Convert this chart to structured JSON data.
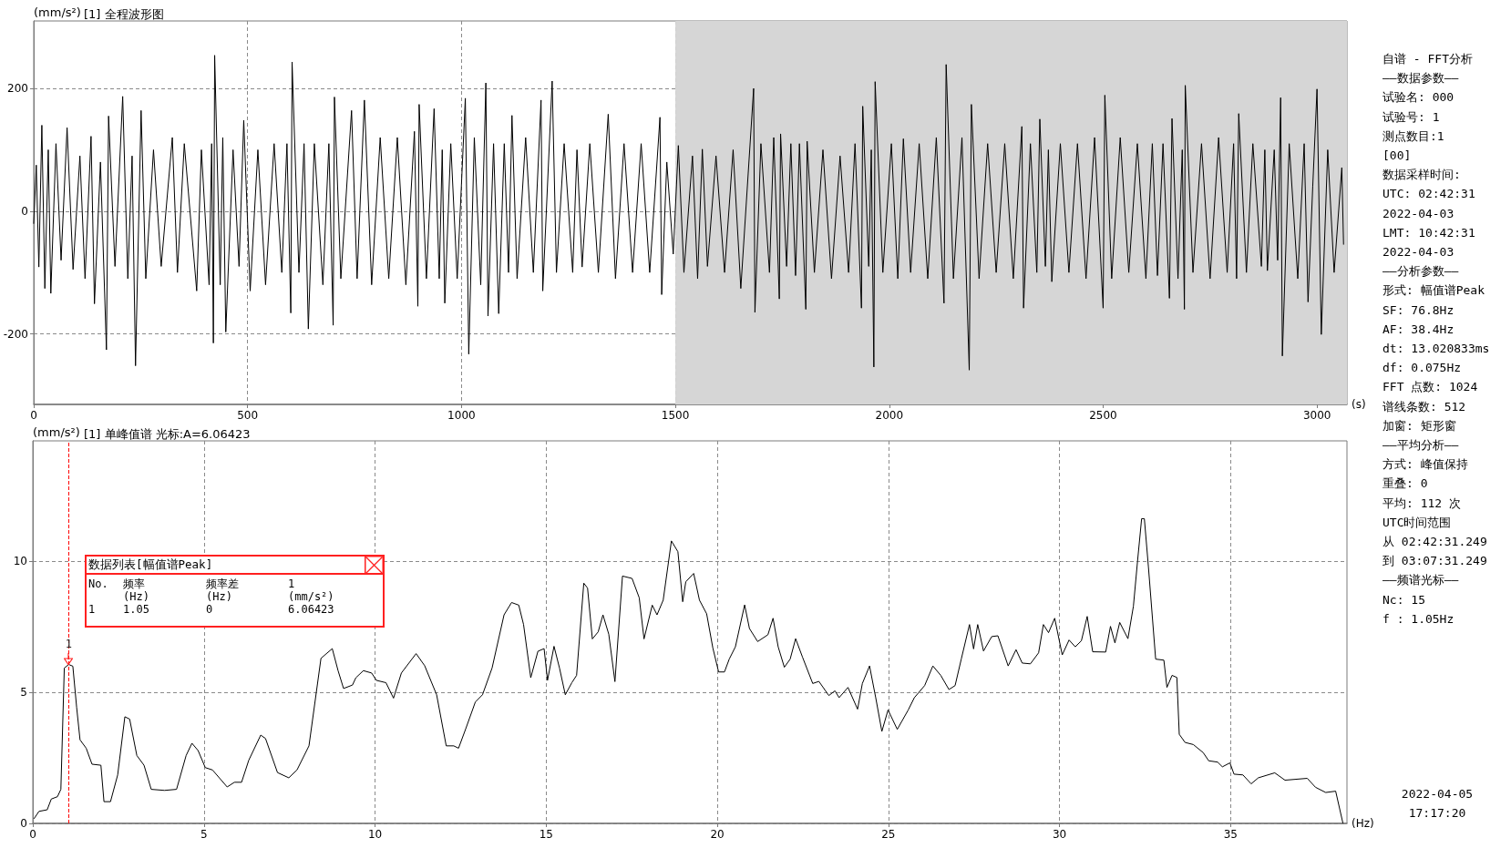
{
  "chart_data": [
    {
      "type": "line",
      "title": "[1] 全程波形图",
      "ylabel": "(mm/s²)",
      "xlabel": "(s)",
      "xlim": [
        0,
        3070
      ],
      "xticks": [
        0,
        500,
        1000,
        1500,
        2000,
        2500,
        3000
      ],
      "ylim": [
        -315,
        310
      ],
      "yticks": [
        -200,
        0,
        200
      ],
      "grid": true,
      "bands": [
        {
          "axis": "x",
          "from": 1500,
          "to": 3070,
          "color": "#d6d6d6"
        }
      ],
      "x": [
        0,
        6,
        12,
        19,
        26,
        34,
        40,
        52,
        64,
        78,
        92,
        108,
        120,
        134,
        142,
        156,
        170,
        175,
        190,
        208,
        220,
        230,
        238,
        251,
        262,
        280,
        298,
        324,
        336,
        352,
        381,
        392,
        410,
        416,
        420,
        423,
        436,
        442,
        449,
        466,
        480,
        491,
        506,
        524,
        542,
        562,
        580,
        592,
        601,
        604,
        620,
        632,
        642,
        656,
        676,
        690,
        700,
        703,
        718,
        743,
        756,
        773,
        790,
        810,
        830,
        850,
        870,
        890,
        898,
        901,
        918,
        936,
        948,
        955,
        961,
        975,
        990,
        1009,
        1017,
        1030,
        1045,
        1057,
        1062,
        1075,
        1087,
        1100,
        1110,
        1118,
        1130,
        1150,
        1168,
        1186,
        1190,
        1212,
        1222,
        1240,
        1260,
        1270,
        1282,
        1300,
        1320,
        1343,
        1360,
        1380,
        1400,
        1420,
        1440,
        1464,
        1468,
        1480,
        1495,
        1507,
        1520,
        1540,
        1552,
        1563,
        1575,
        1595,
        1615,
        1635,
        1653,
        1683,
        1686,
        1700,
        1720,
        1730,
        1743,
        1746,
        1760,
        1770,
        1781,
        1790,
        1805,
        1808,
        1825,
        1845,
        1865,
        1885,
        1905,
        1920,
        1935,
        1938,
        1952,
        1958,
        1964,
        1967,
        1985,
        2005,
        2020,
        2033,
        2050,
        2070,
        2090,
        2110,
        2128,
        2133,
        2150,
        2170,
        2187,
        2192,
        2210,
        2230,
        2250,
        2270,
        2290,
        2310,
        2314,
        2330,
        2345,
        2352,
        2365,
        2372,
        2380,
        2400,
        2420,
        2440,
        2460,
        2480,
        2500,
        2504,
        2520,
        2540,
        2560,
        2580,
        2600,
        2615,
        2627,
        2640,
        2655,
        2661,
        2675,
        2685,
        2690,
        2692,
        2710,
        2730,
        2750,
        2770,
        2790,
        2805,
        2812,
        2817,
        2835,
        2850,
        2870,
        2878,
        2884,
        2900,
        2908,
        2915,
        2919,
        2935,
        2955,
        2970,
        2979,
        2990,
        3000,
        3010,
        3025,
        3040,
        3058,
        3062
      ],
      "series": [
        {
          "color": "#000000",
          "values": [
            -20,
            75,
            -91,
            140,
            -126,
            100,
            -134,
            110,
            -80,
            136,
            -95,
            90,
            -110,
            122,
            -151,
            80,
            -226,
            155,
            -90,
            187,
            -110,
            90,
            -252,
            164,
            -110,
            100,
            -90,
            120,
            -100,
            110,
            -130,
            100,
            -120,
            110,
            -215,
            254,
            -120,
            120,
            -197,
            100,
            -90,
            148,
            -130,
            100,
            -120,
            110,
            -100,
            110,
            -166,
            243,
            -100,
            110,
            -192,
            110,
            -120,
            110,
            -186,
            186,
            -110,
            164,
            -110,
            181,
            -120,
            120,
            -110,
            120,
            -120,
            130,
            -155,
            174,
            -110,
            167,
            -110,
            100,
            -150,
            110,
            -110,
            184,
            -233,
            120,
            -120,
            209,
            -171,
            110,
            -167,
            110,
            -100,
            156,
            -110,
            120,
            -100,
            181,
            -130,
            212,
            -100,
            110,
            -100,
            100,
            -91,
            110,
            -100,
            158,
            -110,
            110,
            -100,
            110,
            -100,
            153,
            -136,
            80,
            -70,
            107,
            -100,
            90,
            -110,
            101,
            -90,
            90,
            -100,
            100,
            -126,
            200,
            -165,
            110,
            -100,
            120,
            -143,
            126,
            -90,
            110,
            -105,
            110,
            -160,
            114,
            -100,
            100,
            -110,
            90,
            -100,
            110,
            -158,
            171,
            -90,
            100,
            -254,
            211,
            -100,
            110,
            -110,
            118,
            -100,
            110,
            -110,
            120,
            -150,
            239,
            -110,
            120,
            -259,
            174,
            -110,
            110,
            -100,
            110,
            -110,
            138,
            -158,
            110,
            -100,
            150,
            -90,
            100,
            -115,
            110,
            -100,
            110,
            -110,
            120,
            -158,
            189,
            -110,
            120,
            -100,
            110,
            -110,
            110,
            -105,
            110,
            -142,
            151,
            -110,
            100,
            -160,
            205,
            -100,
            110,
            -110,
            120,
            -100,
            110,
            -110,
            159,
            -100,
            110,
            -90,
            100,
            -97,
            100,
            -80,
            185,
            -236,
            110,
            -110,
            110,
            -148,
            40,
            199,
            -201,
            100,
            -100,
            71,
            -54
          ]
        }
      ]
    },
    {
      "type": "line",
      "title": "[1] 单峰值谱 光标:A=6.06423",
      "ylabel": "(mm/s²)",
      "xlabel": "(Hz)",
      "xlim": [
        0,
        38.4
      ],
      "xticks": [
        0,
        5,
        10,
        15,
        20,
        25,
        30,
        35
      ],
      "ylim": [
        0,
        14.6
      ],
      "yticks": [
        0,
        5,
        10
      ],
      "grid": true,
      "ref_lines": [
        {
          "axis": "x",
          "value": 1.05,
          "color": "#ff0000",
          "line_style": "dashed"
        }
      ],
      "annotations": [
        {
          "text": "1",
          "x": 1.05,
          "y": 6.06423
        },
        "数据列表[幅值谱Peak]",
        "No.",
        "频率\n(Hz)",
        "频率差\n(Hz)",
        "1\n(mm/s²)",
        "1",
        "1.05",
        "0",
        "6.06423"
      ],
      "x": [
        0.04,
        0.18,
        0.42,
        0.54,
        0.72,
        0.82,
        0.92,
        1.05,
        1.17,
        1.28,
        1.38,
        1.56,
        1.73,
        1.99,
        2.08,
        2.27,
        2.48,
        2.69,
        2.83,
        3.04,
        3.25,
        3.46,
        3.85,
        4.2,
        4.48,
        4.65,
        4.83,
        5.04,
        5.25,
        5.68,
        5.89,
        6.1,
        6.31,
        6.66,
        6.8,
        7.15,
        7.48,
        7.72,
        8.07,
        8.42,
        8.75,
        8.92,
        9.08,
        9.34,
        9.44,
        9.66,
        9.9,
        10.04,
        10.32,
        10.54,
        10.77,
        11.2,
        11.45,
        11.8,
        12.08,
        12.3,
        12.44,
        12.65,
        12.93,
        13.14,
        13.42,
        13.77,
        13.99,
        14.2,
        14.34,
        14.55,
        14.76,
        14.94,
        15.04,
        15.23,
        15.39,
        15.56,
        15.75,
        15.89,
        16.1,
        16.21,
        16.35,
        16.52,
        16.66,
        16.83,
        17.01,
        17.23,
        17.51,
        17.72,
        17.86,
        18.1,
        18.24,
        18.42,
        18.66,
        18.85,
        18.99,
        19.08,
        19.31,
        19.48,
        19.69,
        19.87,
        20.04,
        20.21,
        20.35,
        20.53,
        20.8,
        20.94,
        21.18,
        21.48,
        21.63,
        21.78,
        21.96,
        22.13,
        22.29,
        22.49,
        22.79,
        22.97,
        23.26,
        23.44,
        23.56,
        23.82,
        24.1,
        24.24,
        24.45,
        24.63,
        24.81,
        24.99,
        25.26,
        25.58,
        25.76,
        26.06,
        26.3,
        26.53,
        26.77,
        26.95,
        27.13,
        27.37,
        27.49,
        27.61,
        27.78,
        28.02,
        28.2,
        28.5,
        28.73,
        28.91,
        29.15,
        29.39,
        29.53,
        29.68,
        29.86,
        30.08,
        30.28,
        30.46,
        30.64,
        30.81,
        30.97,
        31.35,
        31.49,
        31.62,
        31.76,
        32.0,
        32.16,
        32.28,
        32.4,
        32.48,
        32.6,
        32.81,
        33.05,
        33.14,
        33.29,
        33.43,
        33.5,
        33.67,
        33.91,
        34.2,
        34.36,
        34.62,
        34.76,
        34.98,
        35.1,
        35.36,
        35.6,
        35.81,
        36.29,
        36.59,
        37.24,
        37.48,
        37.78,
        38.07,
        38.28
      ],
      "series": [
        {
          "color": "#000000",
          "values": [
            0.19,
            0.46,
            0.52,
            0.93,
            1.02,
            1.3,
            5.93,
            6.06423,
            6.0,
            4.44,
            3.19,
            2.87,
            2.26,
            2.22,
            0.83,
            0.83,
            1.85,
            4.07,
            3.98,
            2.59,
            2.22,
            1.3,
            1.26,
            1.3,
            2.59,
            3.06,
            2.78,
            2.13,
            2.04,
            1.39,
            1.57,
            1.57,
            2.41,
            3.37,
            3.24,
            1.94,
            1.74,
            2.04,
            2.96,
            6.3,
            6.67,
            5.83,
            5.15,
            5.28,
            5.56,
            5.83,
            5.74,
            5.46,
            5.37,
            4.78,
            5.74,
            6.48,
            6.02,
            4.91,
            2.96,
            2.96,
            2.87,
            3.61,
            4.63,
            4.91,
            5.93,
            7.96,
            8.43,
            8.33,
            7.59,
            5.56,
            6.57,
            6.67,
            5.46,
            6.76,
            5.93,
            4.91,
            5.37,
            5.65,
            9.17,
            8.98,
            7.04,
            7.31,
            7.96,
            7.22,
            5.41,
            9.44,
            9.35,
            8.61,
            7.04,
            8.33,
            7.96,
            8.52,
            10.78,
            10.37,
            8.46,
            9.22,
            9.54,
            8.52,
            8.0,
            6.7,
            5.78,
            5.78,
            6.27,
            6.74,
            8.34,
            7.44,
            6.94,
            7.2,
            7.83,
            6.74,
            5.96,
            6.27,
            7.05,
            6.35,
            5.34,
            5.42,
            4.88,
            5.06,
            4.8,
            5.19,
            4.36,
            5.34,
            6.01,
            4.8,
            3.51,
            4.33,
            3.59,
            4.33,
            4.8,
            5.26,
            6.01,
            5.65,
            5.11,
            5.26,
            6.27,
            7.59,
            6.66,
            7.59,
            6.58,
            7.13,
            7.16,
            6.01,
            6.63,
            6.12,
            6.09,
            6.51,
            7.59,
            7.28,
            7.83,
            6.43,
            7.0,
            6.74,
            6.97,
            7.9,
            6.55,
            6.54,
            7.52,
            6.89,
            7.67,
            7.05,
            8.29,
            10.0,
            11.63,
            11.63,
            9.77,
            6.27,
            6.23,
            5.19,
            5.65,
            5.57,
            3.4,
            3.09,
            3.01,
            2.7,
            2.39,
            2.34,
            2.16,
            2.31,
            1.88,
            1.85,
            1.51,
            1.74,
            1.93,
            1.65,
            1.72,
            1.38,
            1.18,
            1.23,
            0.02
          ]
        }
      ]
    },
    {
      "type": "other",
      "annotations": [
        "自谱 - FFT分析",
        "——数据参数——",
        "试验名: 000",
        "试验号: 1",
        "测点数目:1",
        "[00]",
        "数据采样时间:",
        "UTC: 02:42:31",
        "2022-04-03",
        "LMT: 10:42:31",
        "2022-04-03",
        "——分析参数——",
        "形式: 幅值谱Peak",
        "SF: 76.8Hz",
        "AF: 38.4Hz",
        "dt: 13.020833ms",
        "df: 0.075Hz",
        "FFT 点数: 1024",
        "谱线条数: 512",
        "加窗: 矩形窗",
        "——平均分析——",
        "方式: 峰值保持",
        "重叠: 0",
        "平均: 112 次",
        "UTC时间范围",
        "从 02:42:31.249",
        "到 03:07:31.249",
        "——频谱光标——",
        "Nc: 15",
        "f : 1.05Hz",
        "2022-04-05",
        "17:17:20"
      ]
    }
  ]
}
